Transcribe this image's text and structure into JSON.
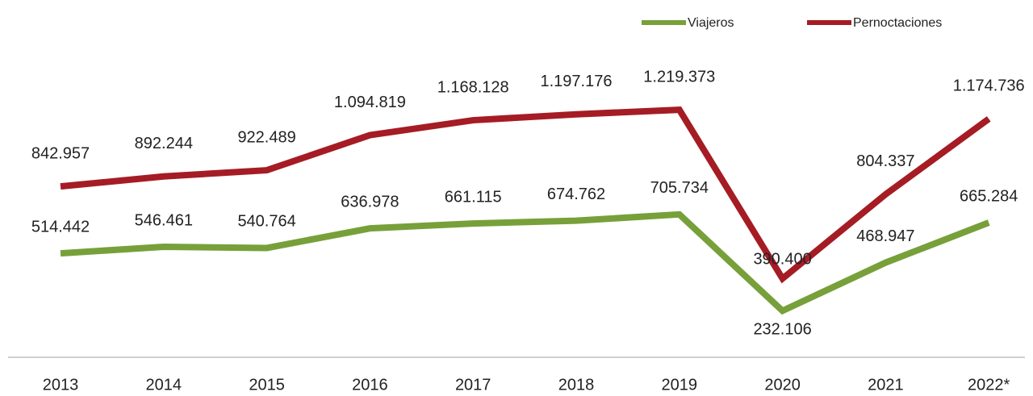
{
  "chart_data": {
    "type": "line",
    "categories": [
      "2013",
      "2014",
      "2015",
      "2016",
      "2017",
      "2018",
      "2019",
      "2020",
      "2021",
      "2022*"
    ],
    "series": [
      {
        "name": "Viajeros",
        "color": "#77a03a",
        "values": [
          514442,
          546461,
          540764,
          636978,
          661115,
          674762,
          705734,
          232106,
          468947,
          665284
        ],
        "value_labels": [
          "514.442",
          "546.461",
          "540.764",
          "636.978",
          "661.115",
          "674.762",
          "705.734",
          "232.106",
          "468.947",
          "665.284"
        ]
      },
      {
        "name": "Pernoctaciones",
        "color": "#a51c24",
        "values": [
          842957,
          892244,
          922489,
          1094819,
          1168128,
          1197176,
          1219373,
          390400,
          804337,
          1174736
        ],
        "value_labels": [
          "842.957",
          "892.244",
          "922.489",
          "1.094.819",
          "1.168.128",
          "1.197.176",
          "1.219.373",
          "390.400",
          "804.337",
          "1.174.736"
        ]
      }
    ],
    "ylim": [
      0,
      1600000
    ],
    "legend": "top-right"
  }
}
